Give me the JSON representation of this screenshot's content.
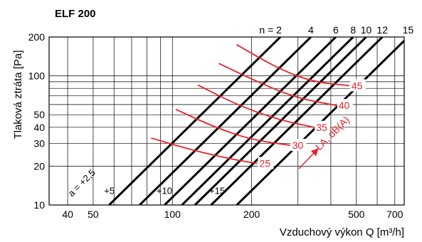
{
  "chart_data": {
    "type": "line",
    "title": "ELF 200",
    "xlabel": "Vzduchový výkon Q [m³/h]",
    "ylabel": "Tlaková ztráta [Pa]",
    "x_scale": "log",
    "y_scale": "log",
    "xlim": [
      34,
      760
    ],
    "ylim": [
      10,
      200
    ],
    "x_ticks": [
      "40",
      "50",
      "100",
      "200",
      "500",
      "700"
    ],
    "y_ticks": [
      "10",
      "20",
      "30",
      "40",
      "50",
      "100",
      "200"
    ],
    "grid": true,
    "n_label_prefix": "n = ",
    "n_lines": [
      {
        "label": "2",
        "line_x_at_10pa": 57.5
      },
      {
        "label": "4",
        "line_x_at_10pa": 75.1
      },
      {
        "label": "6",
        "line_x_at_10pa": 93.4
      },
      {
        "label": "8",
        "line_x_at_10pa": 108.7
      },
      {
        "label": "10",
        "line_x_at_10pa": 121.8
      },
      {
        "label": "12",
        "line_x_at_10pa": 140.3
      },
      {
        "label": "15",
        "line_x_at_10pa": 175.7
      }
    ],
    "a_labels": [
      {
        "text": "a = +2,5",
        "x": 41.5,
        "y": 11.5
      },
      {
        "text": "+5",
        "x": 55,
        "y": 12.2
      },
      {
        "text": "+10",
        "x": 87,
        "y": 12.2
      },
      {
        "text": "+15",
        "x": 138,
        "y": 12.2
      }
    ],
    "noise_label": "LA, dB(A)",
    "noise_color": "#e8222c",
    "noise_curves": [
      {
        "label": "25",
        "points": [
          [
            83,
            33
          ],
          [
            120,
            26.5
          ],
          [
            170,
            22.5
          ],
          [
            210,
            21
          ]
        ]
      },
      {
        "label": "30",
        "points": [
          [
            103,
            55
          ],
          [
            145,
            40
          ],
          [
            200,
            32
          ],
          [
            280,
            29
          ]
        ]
      },
      {
        "label": "35",
        "points": [
          [
            125,
            85
          ],
          [
            175,
            60
          ],
          [
            250,
            46
          ],
          [
            345,
            40
          ]
        ]
      },
      {
        "label": "40",
        "points": [
          [
            150,
            125
          ],
          [
            215,
            88
          ],
          [
            300,
            67
          ],
          [
            420,
            59
          ]
        ]
      },
      {
        "label": "45",
        "points": [
          [
            175,
            175
          ],
          [
            250,
            115
          ],
          [
            340,
            90
          ],
          [
            470,
            84
          ]
        ]
      }
    ]
  }
}
